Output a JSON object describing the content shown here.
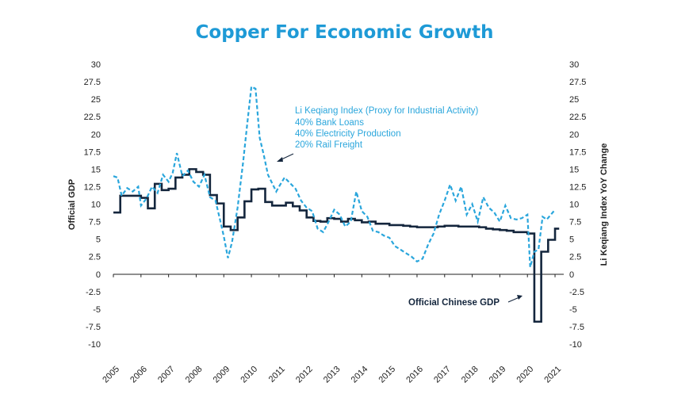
{
  "chart_data": {
    "type": "line",
    "title": "Copper For Economic Growth",
    "ylabel_left": "Official GDP",
    "ylabel_right": "Li Keqiang Index YoY Change",
    "ylim": [
      -10,
      30
    ],
    "y_ticks": [
      "30",
      "27.5",
      "25",
      "22.5",
      "20",
      "17.5",
      "15",
      "12.5",
      "10",
      "7.5",
      "5",
      "2.5",
      "0",
      "-2.5",
      "-5",
      "-7.5",
      "-10"
    ],
    "x_ticks": [
      "2005",
      "2006",
      "2007",
      "2008",
      "2009",
      "2010",
      "2011",
      "2012",
      "2013",
      "2014",
      "2015",
      "2016",
      "2017",
      "2018",
      "2019",
      "2020",
      "2021"
    ],
    "annotations": {
      "lk_lines": [
        "Li Keqiang Index (Proxy for Industrial Activity)",
        "40% Bank Loans",
        "40% Electricity Production",
        "20% Rail Freight"
      ],
      "gdp": "Official Chinese GDP"
    },
    "colors": {
      "gdp": "#14263d",
      "lk": "#2aa6dc",
      "title": "#1e9ad6"
    },
    "series": [
      {
        "name": "Official Chinese GDP",
        "style": "solid-step",
        "x": [
          2005.0,
          2005.25,
          2005.5,
          2005.75,
          2006.0,
          2006.25,
          2006.5,
          2006.75,
          2007.0,
          2007.25,
          2007.5,
          2007.75,
          2008.0,
          2008.25,
          2008.5,
          2008.75,
          2009.0,
          2009.25,
          2009.5,
          2009.75,
          2010.0,
          2010.25,
          2010.5,
          2010.75,
          2011.0,
          2011.25,
          2011.5,
          2011.75,
          2012.0,
          2012.25,
          2012.5,
          2012.75,
          2013.0,
          2013.25,
          2013.5,
          2013.75,
          2014.0,
          2014.25,
          2014.5,
          2014.75,
          2015.0,
          2015.25,
          2015.5,
          2015.75,
          2016.0,
          2016.25,
          2016.5,
          2016.75,
          2017.0,
          2017.25,
          2017.5,
          2017.75,
          2018.0,
          2018.25,
          2018.5,
          2018.75,
          2019.0,
          2019.25,
          2019.5,
          2019.75,
          2020.0,
          2020.25,
          2020.5,
          2020.75,
          2021.0
        ],
        "values": [
          8.8,
          11.2,
          11.2,
          11.2,
          10.9,
          9.4,
          12.9,
          12.0,
          12.2,
          13.8,
          14.2,
          15.0,
          14.6,
          14.2,
          11.3,
          10.1,
          6.8,
          6.3,
          8.1,
          10.4,
          12.1,
          12.2,
          10.3,
          9.8,
          9.8,
          10.2,
          9.7,
          9.1,
          8.1,
          7.6,
          7.5,
          8.0,
          7.9,
          7.5,
          7.9,
          7.7,
          7.4,
          7.5,
          7.2,
          7.2,
          7.0,
          7.0,
          6.9,
          6.8,
          6.7,
          6.7,
          6.7,
          6.8,
          6.9,
          6.9,
          6.8,
          6.8,
          6.8,
          6.7,
          6.5,
          6.4,
          6.3,
          6.2,
          6.0,
          6.0,
          5.8,
          -6.8,
          3.2,
          4.9,
          6.5
        ]
      },
      {
        "name": "Li Keqiang Index (Proxy for Industrial Activity)",
        "style": "dashed",
        "x": [
          2005.0,
          2005.15,
          2005.3,
          2005.5,
          2005.7,
          2005.9,
          2006.0,
          2006.2,
          2006.4,
          2006.6,
          2006.8,
          2007.0,
          2007.15,
          2007.3,
          2007.5,
          2007.7,
          2007.9,
          2008.1,
          2008.3,
          2008.5,
          2008.7,
          2008.85,
          2009.0,
          2009.15,
          2009.3,
          2009.5,
          2009.7,
          2009.85,
          2010.0,
          2010.15,
          2010.3,
          2010.45,
          2010.6,
          2010.75,
          2010.9,
          2011.0,
          2011.2,
          2011.4,
          2011.6,
          2011.8,
          2012.0,
          2012.2,
          2012.4,
          2012.6,
          2012.8,
          2013.0,
          2013.2,
          2013.4,
          2013.6,
          2013.8,
          2014.0,
          2014.2,
          2014.4,
          2014.6,
          2014.8,
          2015.0,
          2015.2,
          2015.4,
          2015.6,
          2015.8,
          2016.0,
          2016.2,
          2016.4,
          2016.6,
          2016.8,
          2017.0,
          2017.2,
          2017.4,
          2017.6,
          2017.8,
          2018.0,
          2018.2,
          2018.4,
          2018.6,
          2018.8,
          2019.0,
          2019.2,
          2019.4,
          2019.6,
          2019.8,
          2020.0,
          2020.1,
          2020.25,
          2020.4,
          2020.55,
          2020.7,
          2020.85,
          2021.0
        ],
        "values": [
          14.0,
          13.8,
          11.2,
          12.3,
          11.8,
          12.5,
          9.8,
          10.8,
          12.5,
          11.6,
          14.2,
          13.2,
          14.5,
          17.3,
          14.0,
          14.8,
          13.2,
          12.5,
          14.2,
          11.0,
          10.5,
          8.0,
          5.4,
          2.3,
          4.6,
          9.5,
          16.0,
          21.5,
          26.8,
          26.5,
          19.5,
          17.0,
          14.2,
          13.0,
          11.8,
          12.5,
          13.8,
          13.0,
          12.2,
          10.5,
          9.5,
          9.0,
          6.5,
          6.0,
          7.5,
          9.2,
          8.5,
          6.8,
          7.5,
          11.8,
          9.0,
          8.2,
          6.2,
          6.0,
          5.5,
          5.2,
          4.0,
          3.5,
          3.0,
          2.5,
          1.8,
          2.2,
          4.2,
          5.8,
          8.5,
          10.5,
          12.8,
          10.5,
          12.5,
          8.5,
          10.0,
          7.5,
          11.0,
          9.5,
          8.8,
          7.5,
          9.8,
          8.0,
          7.8,
          8.0,
          8.5,
          1.0,
          3.2,
          3.5,
          8.2,
          7.8,
          8.5,
          9.2
        ]
      }
    ]
  }
}
